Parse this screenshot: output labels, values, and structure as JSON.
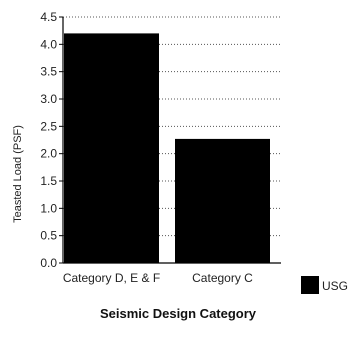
{
  "chart_data": {
    "type": "bar",
    "categories": [
      "Category D, E & F",
      "Category C"
    ],
    "series": [
      {
        "name": "USG",
        "values": [
          4.2,
          2.27
        ]
      }
    ],
    "title": "",
    "xlabel": "Seismic Design Category",
    "ylabel": "Teasted Load (PSF)",
    "ylim": [
      0,
      4.5
    ],
    "yticks": [
      "0.0",
      "0.5",
      "1.0",
      "1.5",
      "2.0",
      "2.5",
      "3.0",
      "3.5",
      "4.0",
      "4.5"
    ],
    "grid": "horizontal-dotted",
    "legend": "bottom-right",
    "colors": {
      "bar": "#000000",
      "grid": "#555555",
      "axis": "#000000"
    }
  }
}
